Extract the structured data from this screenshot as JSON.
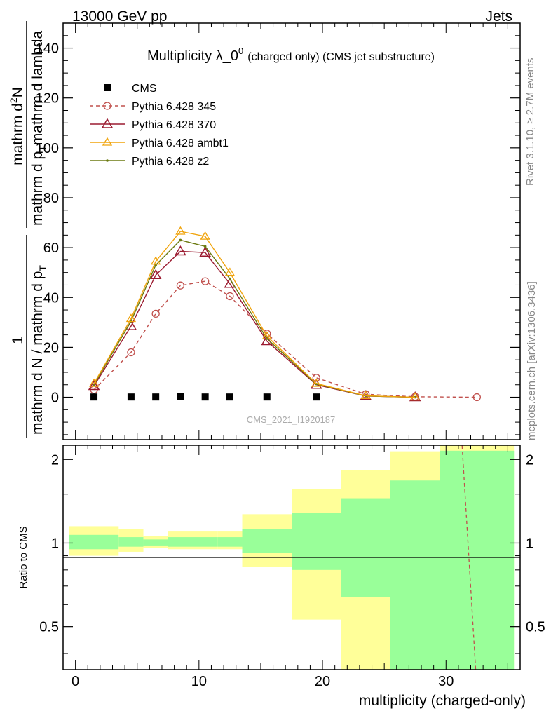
{
  "header": {
    "left": "13000 GeV pp",
    "right": "Jets"
  },
  "side_labels": {
    "rivet": "Rivet 3.1.10, ≥ 2.7M events",
    "mcplots": "mcplots.cern.ch [arXiv:1306.3436]"
  },
  "watermark": "CMS_2021_I1920187",
  "colors": {
    "cms": "#000000",
    "p345": "#c0504d",
    "p370": "#9b1b30",
    "ambt1": "#f0a30a",
    "z2": "#6b7a10",
    "band_outer": "#ffff99",
    "band_inner": "#99ff99"
  },
  "chart_data": [
    {
      "type": "line",
      "title": "Multiplicity λ_0",
      "title_sup": "0",
      "title_suffix": "(charged only) (CMS jet substructure)",
      "ylabel": {
        "numerator": "mathrm d",
        "numerator_sup": "2",
        "numerator_tail": "N",
        "denominator": "mathrm d p",
        "denominator_sub": "T",
        "denominator_tail": "mathrm d lambda",
        "prefix_num": "1",
        "prefix_den": "mathrm d N / mathrm d p",
        "prefix_den_sub": "T"
      },
      "xlim": [
        -1,
        36
      ],
      "ylim": [
        -17,
        150
      ],
      "yticks": [
        0,
        20,
        40,
        60,
        80,
        100,
        120,
        140
      ],
      "legend_position": "top-left",
      "series": [
        {
          "name": "CMS",
          "marker": "filled-square",
          "x": [
            1.5,
            4.5,
            6.5,
            8.5,
            10.5,
            12.5,
            15.5,
            19.5
          ],
          "values": [
            0.1,
            0.1,
            0.1,
            0.3,
            0.1,
            0.1,
            0.1,
            0.1
          ]
        },
        {
          "name": "Pythia 6.428 345",
          "marker": "open-circle",
          "style": "dashed",
          "x": [
            1.5,
            4.5,
            6.5,
            8.5,
            10.5,
            12.5,
            15.5,
            19.5,
            23.5,
            27.5,
            32.5
          ],
          "values": [
            3.0,
            18.0,
            33.5,
            44.8,
            46.5,
            40.5,
            25.5,
            7.8,
            1.2,
            0.2,
            0.0
          ]
        },
        {
          "name": "Pythia 6.428 370",
          "marker": "open-triangle",
          "style": "solid",
          "x": [
            1.5,
            4.5,
            6.5,
            8.5,
            10.5,
            12.5,
            15.5,
            19.5,
            23.5,
            27.5
          ],
          "values": [
            4.5,
            28.5,
            49.0,
            58.5,
            58.0,
            45.5,
            22.5,
            5.0,
            0.5,
            0.0
          ]
        },
        {
          "name": "Pythia 6.428 ambt1",
          "marker": "open-triangle-small",
          "style": "solid",
          "x": [
            1.5,
            4.5,
            6.5,
            8.5,
            10.5,
            12.5,
            15.5,
            19.5,
            23.5,
            27.5
          ],
          "values": [
            5.5,
            31.5,
            54.5,
            66.5,
            64.5,
            50.0,
            24.5,
            5.5,
            0.6,
            0.0
          ]
        },
        {
          "name": "Pythia 6.428 z2",
          "marker": "dot",
          "style": "solid",
          "x": [
            1.5,
            4.5,
            6.5,
            8.5,
            10.5,
            12.5,
            15.5,
            19.5,
            23.5,
            27.5
          ],
          "values": [
            5.0,
            30.5,
            53.0,
            63.0,
            60.5,
            47.5,
            23.5,
            5.3,
            0.5,
            0.0
          ]
        }
      ]
    },
    {
      "type": "area",
      "ylabel": "Ratio to CMS",
      "xlabel": "multiplicity (charged-only)",
      "xlim": [
        -1,
        36
      ],
      "ylim": [
        0.35,
        2.25
      ],
      "yscale": "log",
      "yticks": [
        0.5,
        1,
        2
      ],
      "xticks": [
        0,
        10,
        20,
        30
      ],
      "bins": [
        [
          -0.5,
          3.5
        ],
        [
          3.5,
          5.5
        ],
        [
          5.5,
          7.5
        ],
        [
          7.5,
          9.5
        ],
        [
          9.5,
          11.5
        ],
        [
          11.5,
          13.5
        ],
        [
          13.5,
          17.5
        ],
        [
          17.5,
          21.5
        ],
        [
          21.5,
          25.5
        ],
        [
          25.5,
          29.5
        ],
        [
          29.5,
          35.5
        ]
      ],
      "band_inner": [
        [
          0.95,
          1.07
        ],
        [
          0.97,
          1.05
        ],
        [
          0.98,
          1.03
        ],
        [
          0.97,
          1.05
        ],
        [
          0.97,
          1.05
        ],
        [
          0.97,
          1.05
        ],
        [
          0.92,
          1.12
        ],
        [
          0.8,
          1.28
        ],
        [
          0.64,
          1.45
        ],
        [
          0.35,
          1.68
        ],
        [
          0.35,
          2.15
        ]
      ],
      "band_outer": [
        [
          0.9,
          1.15
        ],
        [
          0.93,
          1.12
        ],
        [
          0.96,
          1.06
        ],
        [
          0.95,
          1.1
        ],
        [
          0.95,
          1.1
        ],
        [
          0.95,
          1.1
        ],
        [
          0.82,
          1.27
        ],
        [
          0.53,
          1.56
        ],
        [
          0.35,
          1.83
        ],
        [
          0.35,
          2.14
        ],
        [
          0.35,
          2.25
        ]
      ],
      "series": [
        {
          "name": "Pythia 6.428 345",
          "style": "dashed",
          "x": [
            31.3,
            32.4
          ],
          "values": [
            2.25,
            0.35
          ]
        }
      ]
    }
  ]
}
